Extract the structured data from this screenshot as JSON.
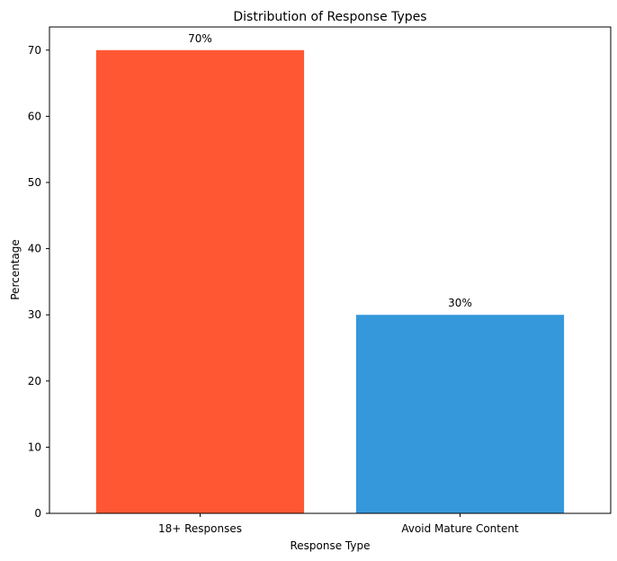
{
  "chart_data": {
    "type": "bar",
    "title": "Distribution of Response Types",
    "xlabel": "Response Type",
    "ylabel": "Percentage",
    "categories": [
      "18+ Responses",
      "Avoid Mature Content"
    ],
    "values": [
      70,
      30
    ],
    "data_labels": [
      "70%",
      "30%"
    ],
    "colors": [
      "#FF5733",
      "#3498DB"
    ],
    "ylim": [
      0,
      73.5
    ],
    "yticks": [
      0,
      10,
      20,
      30,
      40,
      50,
      60,
      70
    ],
    "grid": false,
    "legend": "none"
  }
}
